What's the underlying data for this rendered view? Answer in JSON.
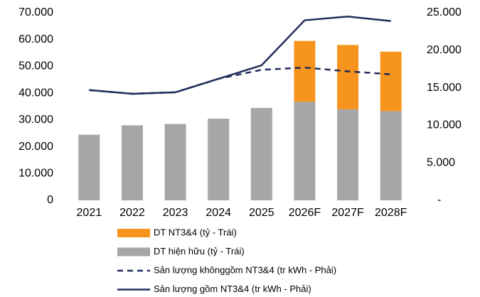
{
  "chart_data": {
    "type": "bar",
    "categories": [
      "2021",
      "2022",
      "2023",
      "2024",
      "2025",
      "2026F",
      "2027F",
      "2028F"
    ],
    "series": [
      {
        "name": "DT hiện hữu (tỷ - Trái)",
        "type": "bar",
        "color": "#a6a6a6",
        "values": [
          24500,
          28000,
          28500,
          30500,
          34500,
          36800,
          34000,
          33300
        ]
      },
      {
        "name": "DT NT3&4 (tỷ - Trái)",
        "type": "bar",
        "color": "#f7941d",
        "values": [
          null,
          null,
          null,
          null,
          null,
          22700,
          24000,
          22200
        ]
      },
      {
        "name": "Sản lượng khônggồm NT3&4 (tr kWh - Phải)",
        "type": "line",
        "dashed": true,
        "axis": "y2",
        "color": "#1f2d5a",
        "values": [
          14700,
          14200,
          14400,
          16200,
          17400,
          17700,
          17200,
          16800
        ]
      },
      {
        "name": "Sản lượng gồm NT3&4 (tr kWh - Phải)",
        "type": "line",
        "axis": "y2",
        "color": "#1f2d5a",
        "values": [
          14700,
          14200,
          14400,
          16200,
          18000,
          24000,
          24500,
          23900
        ]
      }
    ],
    "legend_order": [
      1,
      0,
      2,
      3
    ],
    "ylim": [
      0,
      70000
    ],
    "yticks": [
      {
        "value": 0,
        "label": "0"
      },
      {
        "value": 10000,
        "label": "10.000"
      },
      {
        "value": 20000,
        "label": "20.000"
      },
      {
        "value": 30000,
        "label": "30.000"
      },
      {
        "value": 40000,
        "label": "40.000"
      },
      {
        "value": 50000,
        "label": "50.000"
      },
      {
        "value": 60000,
        "label": "60.000"
      },
      {
        "value": 70000,
        "label": "70.000"
      }
    ],
    "y2lim": [
      0,
      25000
    ],
    "y2ticks": [
      {
        "value": 0,
        "label": "-"
      },
      {
        "value": 5000,
        "label": "5.000"
      },
      {
        "value": 10000,
        "label": "10.000"
      },
      {
        "value": 15000,
        "label": "15.000"
      },
      {
        "value": 20000,
        "label": "20.000"
      },
      {
        "value": 25000,
        "label": "25.000"
      }
    ]
  }
}
